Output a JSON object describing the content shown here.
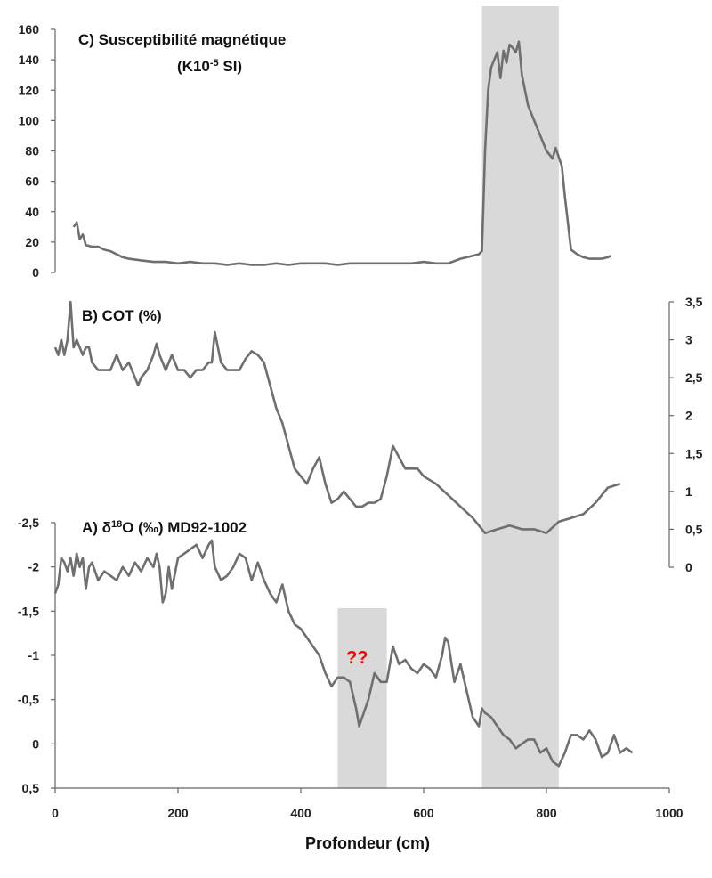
{
  "colors": {
    "series": "#6f6f6f",
    "band": "#d9d9d9",
    "annotation": "#ff0000",
    "axis": "#666666"
  },
  "chart_data": {
    "type": "line",
    "xlabel": "Profondeur (cm)",
    "xlim": [
      0,
      1000
    ],
    "xticks": [
      "0",
      "200",
      "400",
      "600",
      "800",
      "1000"
    ],
    "shaded_bands": [
      {
        "x": [
          695,
          820
        ],
        "panels": "all"
      },
      {
        "x": [
          460,
          540
        ],
        "panels": "A"
      }
    ],
    "panels": [
      {
        "id": "C",
        "title": "C) Susceptibilité magnétique",
        "subtitle_prefix": "(K10",
        "subtitle_sup": "-5",
        "subtitle_suffix": " SI)",
        "axis": "left",
        "ylim": [
          0,
          160
        ],
        "yticks": [
          "160",
          "140",
          "120",
          "100",
          "80",
          "60",
          "40",
          "20",
          "0"
        ],
        "x": [
          30,
          35,
          40,
          45,
          50,
          60,
          70,
          80,
          90,
          100,
          110,
          120,
          140,
          160,
          180,
          200,
          220,
          240,
          260,
          280,
          300,
          320,
          340,
          360,
          380,
          400,
          420,
          440,
          460,
          480,
          500,
          520,
          540,
          560,
          580,
          600,
          620,
          640,
          660,
          680,
          690,
          695,
          700,
          705,
          710,
          715,
          720,
          725,
          730,
          735,
          740,
          745,
          750,
          755,
          760,
          770,
          780,
          790,
          800,
          810,
          815,
          820,
          825,
          830,
          840,
          850,
          860,
          870,
          880,
          890,
          900,
          905
        ],
        "y": [
          30,
          33,
          22,
          25,
          18,
          17,
          17,
          15,
          14,
          12,
          10,
          9,
          8,
          7,
          7,
          6,
          7,
          6,
          6,
          5,
          6,
          5,
          5,
          6,
          5,
          6,
          6,
          6,
          5,
          6,
          6,
          6,
          6,
          6,
          6,
          7,
          6,
          6,
          9,
          11,
          12,
          14,
          80,
          120,
          135,
          140,
          145,
          128,
          146,
          138,
          150,
          148,
          145,
          152,
          130,
          110,
          100,
          90,
          80,
          75,
          82,
          76,
          70,
          50,
          15,
          12,
          10,
          9,
          9,
          9,
          10,
          11
        ]
      },
      {
        "id": "B",
        "title": "B) COT (%)",
        "axis": "right",
        "ylim": [
          0,
          3.5
        ],
        "yticks": [
          "3,5",
          "3",
          "2,5",
          "2",
          "1,5",
          "1",
          "0,5",
          "0"
        ],
        "x": [
          0,
          5,
          10,
          15,
          20,
          25,
          30,
          35,
          40,
          45,
          50,
          55,
          60,
          70,
          80,
          90,
          100,
          110,
          120,
          130,
          135,
          140,
          150,
          160,
          165,
          170,
          180,
          190,
          200,
          210,
          220,
          230,
          240,
          250,
          255,
          260,
          270,
          280,
          290,
          300,
          310,
          320,
          330,
          340,
          350,
          360,
          370,
          380,
          390,
          400,
          410,
          420,
          430,
          440,
          450,
          460,
          470,
          480,
          490,
          500,
          510,
          520,
          530,
          540,
          550,
          560,
          570,
          580,
          590,
          600,
          620,
          640,
          660,
          680,
          695,
          700,
          720,
          740,
          760,
          780,
          800,
          820,
          840,
          860,
          880,
          900,
          920
        ],
        "y": [
          2.9,
          2.8,
          3.0,
          2.8,
          3.0,
          3.5,
          2.9,
          3.0,
          2.9,
          2.8,
          2.9,
          2.9,
          2.7,
          2.6,
          2.6,
          2.6,
          2.8,
          2.6,
          2.7,
          2.5,
          2.4,
          2.5,
          2.6,
          2.8,
          2.95,
          2.8,
          2.6,
          2.8,
          2.6,
          2.6,
          2.5,
          2.6,
          2.6,
          2.7,
          2.7,
          3.1,
          2.7,
          2.6,
          2.6,
          2.6,
          2.75,
          2.85,
          2.8,
          2.7,
          2.4,
          2.1,
          1.9,
          1.6,
          1.3,
          1.2,
          1.1,
          1.3,
          1.45,
          1.1,
          0.85,
          0.9,
          1.0,
          0.9,
          0.8,
          0.8,
          0.85,
          0.85,
          0.9,
          1.2,
          1.6,
          1.45,
          1.3,
          1.3,
          1.3,
          1.2,
          1.1,
          0.95,
          0.8,
          0.65,
          0.5,
          0.45,
          0.5,
          0.55,
          0.5,
          0.5,
          0.45,
          0.6,
          0.65,
          0.7,
          0.85,
          1.05,
          1.1
        ]
      },
      {
        "id": "A",
        "title_prefix": "A) δ",
        "title_sup": "18",
        "title_suffix": "O (‰) MD92-1002",
        "axis": "left",
        "ylim": [
          0.5,
          -2.5
        ],
        "yticks": [
          "-2,5",
          "-2",
          "-1,5",
          "-1",
          "-0,5",
          "0",
          "0,5"
        ],
        "annotation": "??",
        "x": [
          0,
          5,
          10,
          15,
          20,
          25,
          30,
          35,
          40,
          45,
          50,
          55,
          60,
          70,
          80,
          90,
          100,
          110,
          120,
          130,
          140,
          150,
          160,
          165,
          170,
          175,
          180,
          185,
          190,
          200,
          210,
          220,
          230,
          240,
          250,
          255,
          260,
          270,
          280,
          290,
          300,
          310,
          320,
          330,
          340,
          350,
          360,
          370,
          380,
          390,
          400,
          410,
          420,
          430,
          440,
          450,
          460,
          470,
          480,
          490,
          495,
          500,
          510,
          520,
          530,
          540,
          550,
          560,
          570,
          580,
          590,
          600,
          610,
          620,
          630,
          635,
          640,
          650,
          660,
          670,
          680,
          690,
          695,
          700,
          710,
          720,
          730,
          740,
          750,
          760,
          770,
          780,
          790,
          800,
          810,
          820,
          830,
          840,
          850,
          860,
          870,
          880,
          890,
          900,
          910,
          920,
          930,
          940
        ],
        "y": [
          -1.7,
          -1.8,
          -2.1,
          -2.05,
          -1.95,
          -2.1,
          -1.9,
          -2.15,
          -2.0,
          -2.1,
          -1.75,
          -2.0,
          -2.05,
          -1.85,
          -1.95,
          -1.9,
          -1.85,
          -2.0,
          -1.9,
          -2.05,
          -1.95,
          -2.1,
          -2.0,
          -2.15,
          -2.0,
          -1.6,
          -1.7,
          -2.0,
          -1.75,
          -2.1,
          -2.15,
          -2.2,
          -2.25,
          -2.1,
          -2.25,
          -2.3,
          -2.0,
          -1.85,
          -1.9,
          -2.0,
          -2.15,
          -2.1,
          -1.85,
          -2.05,
          -1.85,
          -1.7,
          -1.6,
          -1.8,
          -1.5,
          -1.35,
          -1.3,
          -1.2,
          -1.1,
          -1.0,
          -0.8,
          -0.65,
          -0.75,
          -0.75,
          -0.7,
          -0.4,
          -0.2,
          -0.3,
          -0.5,
          -0.8,
          -0.7,
          -0.7,
          -1.1,
          -0.9,
          -0.95,
          -0.85,
          -0.8,
          -0.9,
          -0.85,
          -0.75,
          -1.0,
          -1.2,
          -1.15,
          -0.7,
          -0.9,
          -0.6,
          -0.3,
          -0.2,
          -0.4,
          -0.35,
          -0.3,
          -0.2,
          -0.1,
          -0.05,
          0.05,
          0.0,
          -0.05,
          -0.05,
          0.1,
          0.05,
          0.2,
          0.25,
          0.1,
          -0.1,
          -0.1,
          -0.05,
          -0.15,
          -0.05,
          0.15,
          0.1,
          -0.1,
          0.1,
          0.05,
          0.1
        ]
      }
    ]
  }
}
